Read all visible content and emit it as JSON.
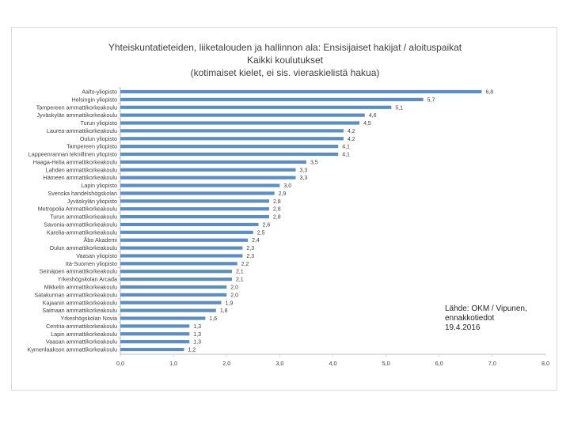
{
  "chart_data": {
    "type": "bar",
    "orientation": "horizontal",
    "title": [
      "Yhteiskuntatieteiden, liiketalouden ja hallinnon ala: Ensisijaiset hakijat / aloituspaikat",
      "Kaikki koulutukset",
      "(kotimaiset kielet, ei sis. vieraskielistä hakua)"
    ],
    "categories": [
      "Aalto-yliopisto",
      "Helsingin yliopisto",
      "Tampereen ammattikorkeakoulu",
      "Jyväskylän ammattikorkeakoulu",
      "Turun yliopisto",
      "Laurea-ammattikorkeakoulu",
      "Oulun yliopisto",
      "Tampereen yliopisto",
      "Lappeenrannan teknillinen yliopisto",
      "Haaga-Helia ammattikorkeakoulu",
      "Lahden ammattikorkeakoulu",
      "Hämeen ammattikorkeakoulu",
      "Lapin yliopisto",
      "Svenska handelshögskolan",
      "Jyväskylän yliopisto",
      "Metropolia Ammattikorkeakoulu",
      "Turun ammattikorkeakoulu",
      "Savonia-ammattikorkeakoulu",
      "Karelia-ammattikorkeakoulu",
      "Åbo Akademi",
      "Oulun ammattikorkeakoulu",
      "Vaasan yliopisto",
      "Itä-Suomen yliopisto",
      "Seinäjoen ammattikorkeakoulu",
      "Yrkeshögskolan Arcada",
      "Mikkelin ammattikorkeakoulu",
      "Satakunnan ammattikorkeakoulu",
      "Kajaanin ammattikorkeakoulu",
      "Saimaan ammattikorkeakoulu",
      "Yrkeshögskolan Novia",
      "Centria-ammattikorkeakoulu",
      "Lapin ammattikorkeakoulu",
      "Vaasan ammattikorkeakoulu",
      "Kymenlaakson ammattikorkeakoulu"
    ],
    "values": [
      6.8,
      5.7,
      5.1,
      4.6,
      4.5,
      4.2,
      4.2,
      4.1,
      4.1,
      3.5,
      3.3,
      3.3,
      3.0,
      2.9,
      2.8,
      2.8,
      2.8,
      2.6,
      2.5,
      2.4,
      2.3,
      2.3,
      2.2,
      2.1,
      2.1,
      2.0,
      2.0,
      1.9,
      1.8,
      1.6,
      1.3,
      1.3,
      1.3,
      1.2
    ],
    "value_labels": [
      "6,8",
      "5,7",
      "5,1",
      "4,6",
      "4,5",
      "4,2",
      "4,2",
      "4,1",
      "4,1",
      "3,5",
      "3,3",
      "3,3",
      "3,0",
      "2,9",
      "2,8",
      "2,8",
      "2,8",
      "2,6",
      "2,5",
      "2,4",
      "2,3",
      "2,3",
      "2,2",
      "2,1",
      "2,1",
      "2,0",
      "2,0",
      "1,9",
      "1,8",
      "1,6",
      "1,3",
      "1,3",
      "1,3",
      "1,2"
    ],
    "x_ticks": [
      "0,0",
      "1,0",
      "2,0",
      "3,0",
      "4,0",
      "5,0",
      "6,0",
      "7,0",
      "8,0"
    ],
    "xlim": [
      0,
      8
    ],
    "xlabel": "",
    "ylabel": "",
    "grid": false,
    "bar_color": "#5b8ec4"
  },
  "source_note": {
    "line1": "Lähde: OKM / Vipunen,",
    "line2": "ennakkotiedot",
    "line3": "19.4.2016"
  }
}
